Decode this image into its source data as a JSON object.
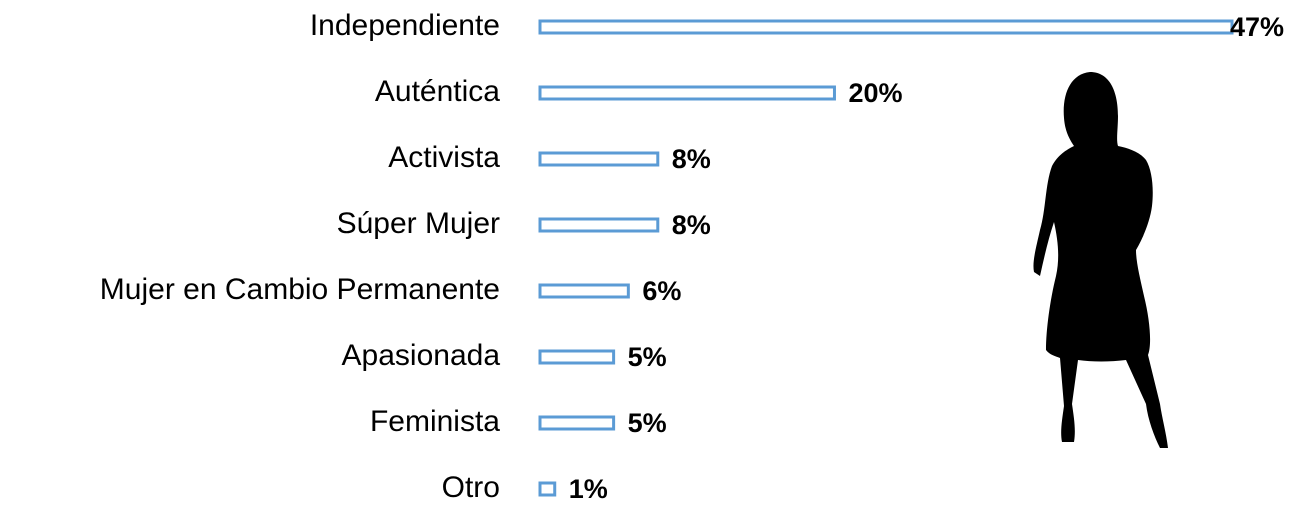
{
  "chart_data": {
    "type": "bar",
    "orientation": "horizontal",
    "categories": [
      "Independiente",
      "Auténtica",
      "Activista",
      "Súper Mujer",
      "Mujer en Cambio Permanente",
      "Apasionada",
      "Feminista",
      "Otro"
    ],
    "values": [
      47,
      20,
      8,
      8,
      6,
      5,
      5,
      1
    ],
    "value_labels": [
      "47%",
      "20%",
      "8%",
      "8%",
      "6%",
      "5%",
      "5%",
      "1%"
    ],
    "color": "#5b9bd5"
  }
}
